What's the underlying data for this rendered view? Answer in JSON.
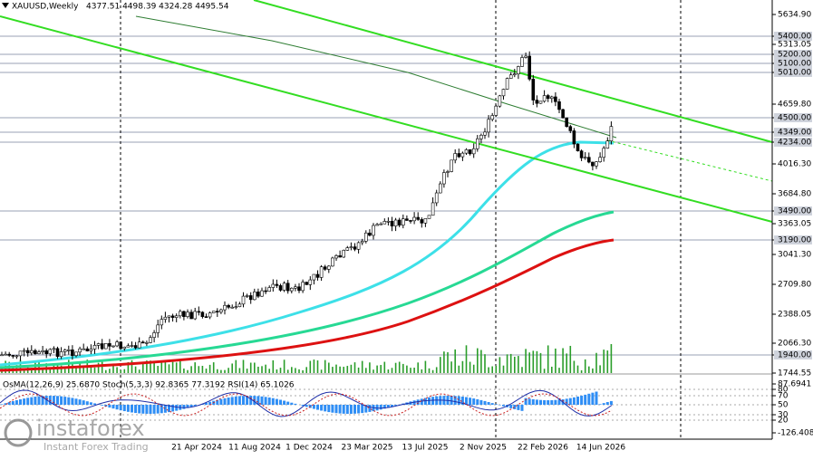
{
  "header": {
    "symbol": "XAUUSD,Weekly",
    "ohlc": "4377.51 4498.39 4324.28 4495.54"
  },
  "price_axis": [
    "5634.90",
    "5400.00",
    "5313.05",
    "5200.00",
    "5100.00",
    "5010.00",
    "4659.80",
    "4500.00",
    "4349.00",
    "4234.00",
    "4016.30",
    "3684.80",
    "3490.00",
    "3363.05",
    "3190.00",
    "3041.30",
    "2709.80",
    "2388.05",
    "2066.30",
    "1940.00",
    "1744.55"
  ],
  "indicator": {
    "label": "OsMA(12,26,9) 25.6870 Stoch(5,3,3) 92.8365 77.3192 RSI(14) 65.1026",
    "axis": [
      "87.6941",
      "80",
      "70",
      "50",
      "30",
      "20",
      "-126.4087"
    ]
  },
  "date_axis": [
    "21 Apr 2024",
    "11 Aug 2024",
    "1 Dec 2024",
    "23 Mar 2025",
    "13 Jul 2025",
    "2 Nov 2025",
    "22 Feb 2026",
    "14 Jun 2026"
  ],
  "watermark": {
    "brand": "instaforex",
    "tagline": "Instant Forex Trading"
  }
}
